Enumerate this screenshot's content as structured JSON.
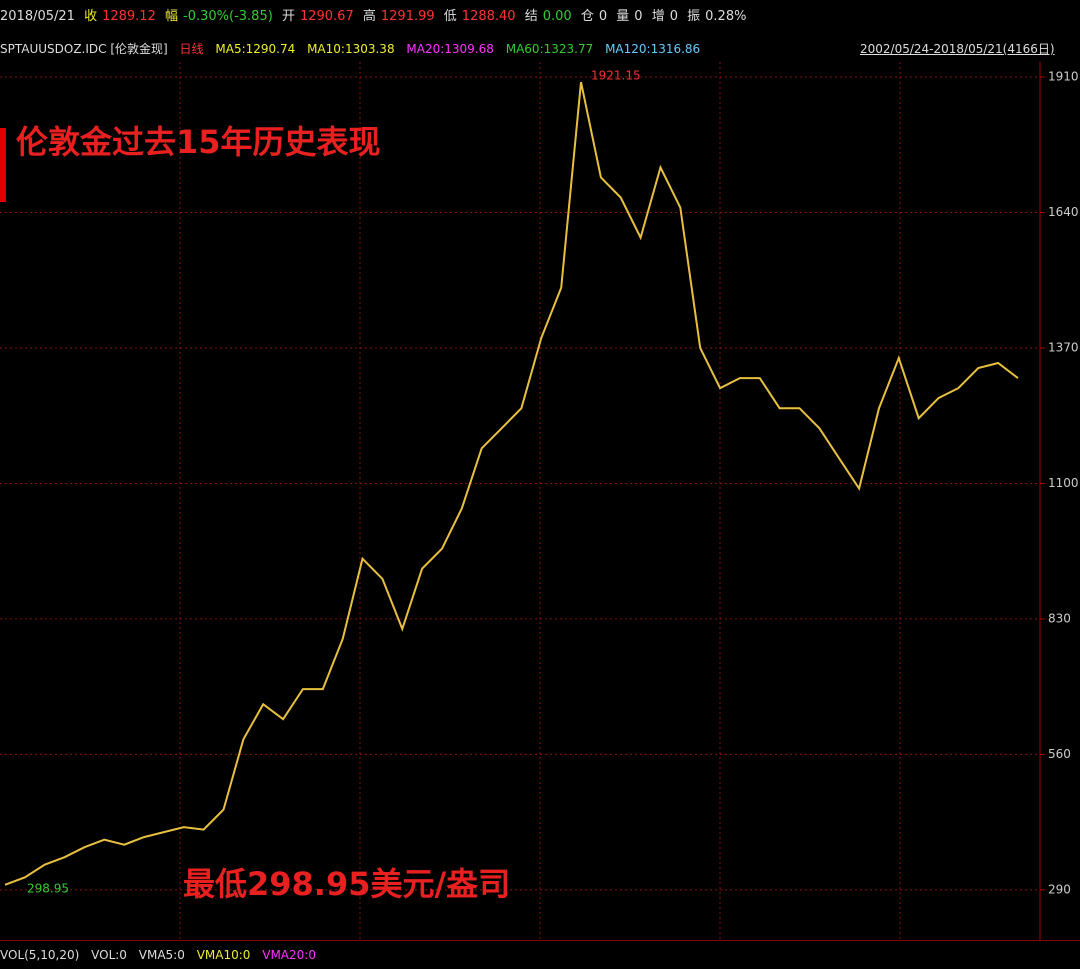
{
  "header": {
    "items": [
      "2018/05/21",
      "收",
      "1289.12",
      "幅",
      "-0.30%(-3.85)",
      "开",
      "1290.67",
      "高",
      "1291.99",
      "低",
      "1288.40",
      "结",
      "0.00",
      "仓",
      "0",
      "量",
      "0",
      "增",
      "0",
      "振",
      "0.28%"
    ],
    "symbol": "SPTAUUSDOZ.IDC [伦敦金现]",
    "period": "日线",
    "ma": [
      "MA5:1290.74",
      "MA10:1303.38",
      "MA20:1309.68",
      "MA60:1323.77",
      "MA120:1316.86"
    ],
    "range": "2002/05/24-2018/05/21(4166日)"
  },
  "footer": {
    "items": [
      "VOL(5,10,20)",
      "VOL:0",
      "VMA5:0",
      "VMA10:0",
      "VMA20:0"
    ]
  },
  "chart_data": {
    "type": "line",
    "title": "伦敦金过去15年历史表现",
    "subtitle": "最低298.95美元/盎司",
    "annotations": {
      "high": "1921.15",
      "low": "298.95"
    },
    "values": [
      300,
      315,
      340,
      355,
      375,
      390,
      380,
      395,
      405,
      415,
      410,
      450,
      590,
      660,
      630,
      690,
      690,
      790,
      950,
      910,
      810,
      930,
      970,
      1050,
      1170,
      1210,
      1250,
      1390,
      1490,
      1900,
      1710,
      1670,
      1590,
      1730,
      1650,
      1370,
      1290,
      1310,
      1310,
      1250,
      1250,
      1210,
      1150,
      1090,
      1250,
      1350,
      1230,
      1270,
      1290,
      1330,
      1340,
      1310
    ],
    "color": "#e8c040",
    "ylim": [
      190,
      1940
    ],
    "yticks": [
      290,
      560,
      830,
      1100,
      1370,
      1640,
      1910
    ],
    "grid": true
  }
}
